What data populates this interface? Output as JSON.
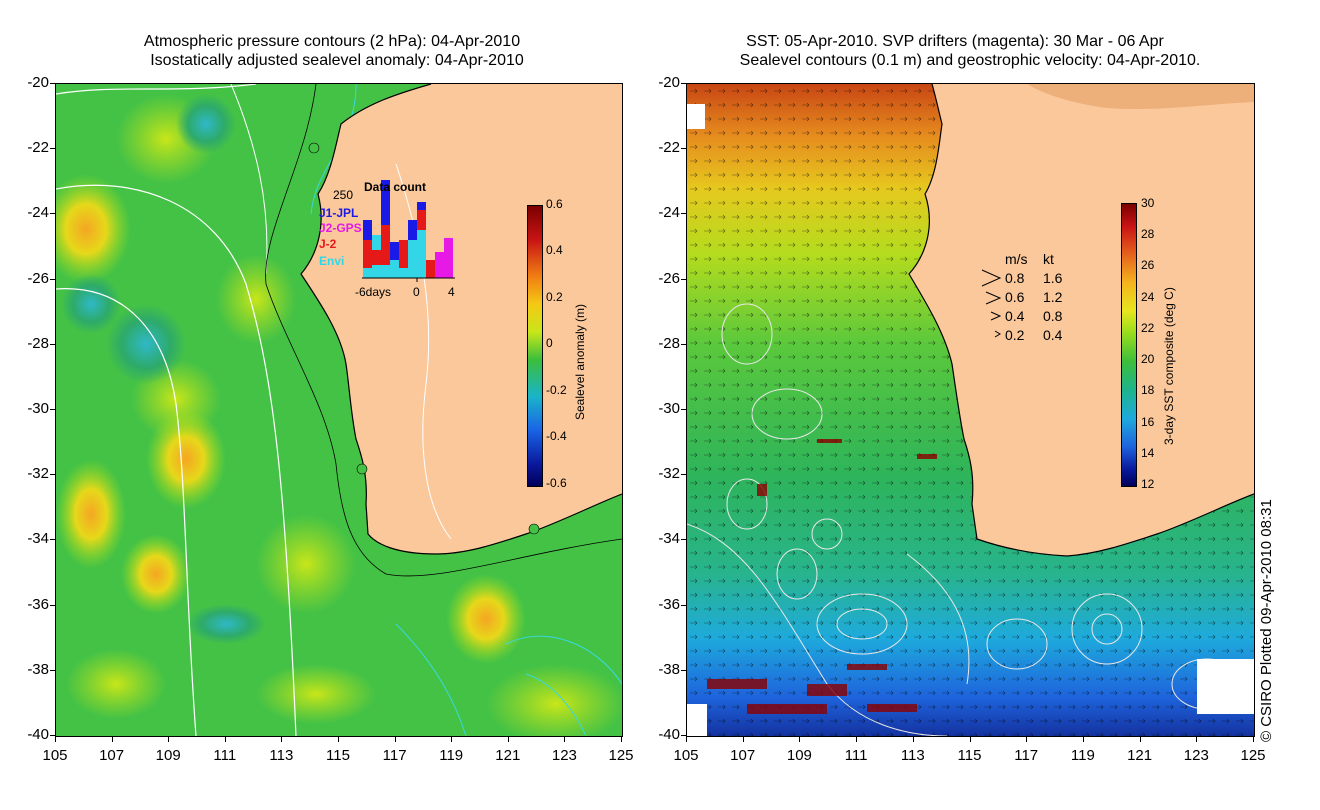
{
  "left_panel": {
    "title_line1": "Atmospheric pressure contours (2 hPa): 04-Apr-2010",
    "title_line2": "Isostatically adjusted sealevel anomaly: 04-Apr-2010",
    "colorbar_label": "Sealevel anomaly (m)",
    "colorbar_ticks": [
      "0.6",
      "0.4",
      "0.2",
      "0",
      "-0.2",
      "-0.4",
      "-0.6"
    ],
    "data_count": {
      "title": "Data count",
      "max_label": "250",
      "x_labels": [
        "-6days",
        "0",
        "4"
      ],
      "legend": [
        {
          "name": "J1-JPL",
          "color": "#1a1ae6"
        },
        {
          "name": "J2-GPS",
          "color": "#e619e6"
        },
        {
          "name": "J-2",
          "color": "#e61919"
        },
        {
          "name": "Envi",
          "color": "#33d6e6"
        }
      ]
    }
  },
  "right_panel": {
    "title_line1": "SST: 05-Apr-2010. SVP drifters (magenta): 30 Mar - 06 Apr",
    "title_line2": "Sealevel contours (0.1 m) and geostrophic velocity: 04-Apr-2010.",
    "colorbar_label": "3-day SST composite (deg C)",
    "colorbar_ticks": [
      "30",
      "28",
      "26",
      "24",
      "22",
      "20",
      "18",
      "16",
      "14",
      "12"
    ],
    "velocity_legend": {
      "header_ms": "m/s",
      "header_kt": "kt",
      "rows": [
        {
          "ms": "0.8",
          "kt": "1.6"
        },
        {
          "ms": "0.6",
          "kt": "1.2"
        },
        {
          "ms": "0.4",
          "kt": "0.8"
        },
        {
          "ms": "0.2",
          "kt": "0.4"
        }
      ]
    }
  },
  "y_axis_labels": [
    "-20",
    "-22",
    "-24",
    "-26",
    "-28",
    "-30",
    "-32",
    "-34",
    "-36",
    "-38",
    "-40"
  ],
  "x_axis_labels": [
    "105",
    "107",
    "109",
    "111",
    "113",
    "115",
    "117",
    "119",
    "121",
    "123",
    "125"
  ],
  "copyright": "© CSIRO Plotted 09-Apr-2010 08:31",
  "colors": {
    "land": "#fac89b",
    "ocean_green": "#3cbe3c",
    "coast": "#000000"
  }
}
